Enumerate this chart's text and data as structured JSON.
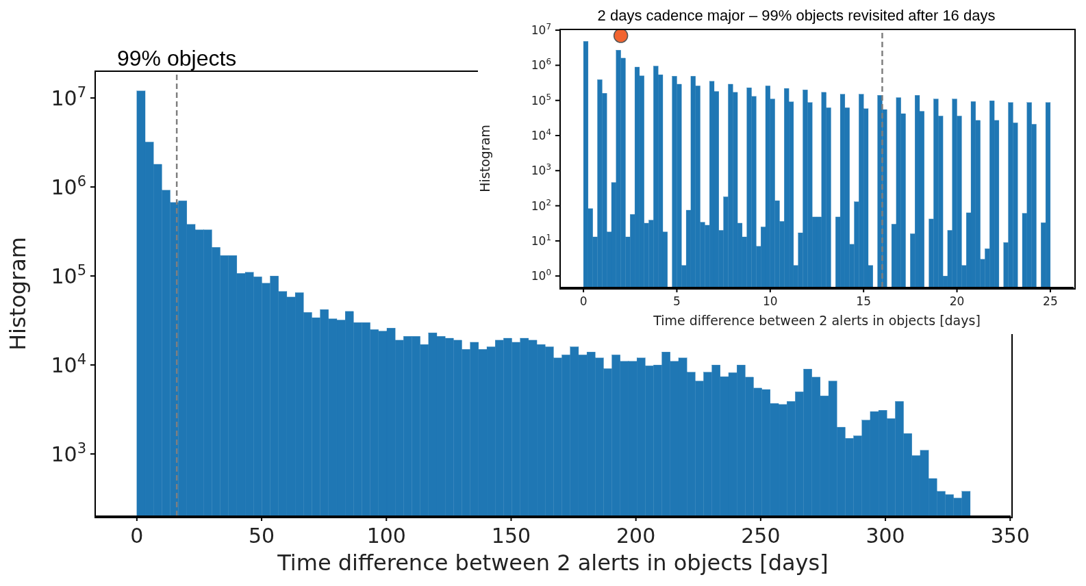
{
  "chart_data": [
    {
      "type": "histogram",
      "xlabel": "Time difference between 2 alerts in objects [days]",
      "ylabel": "Histogram",
      "log": true,
      "color": "#1f77b4",
      "bins": [
        0,
        3.34,
        6.68,
        10.02,
        13.36,
        16.7,
        20.04,
        23.38,
        26.72,
        30.06,
        33.4,
        36.74,
        40.08,
        43.42,
        46.76,
        50.1,
        53.44,
        56.78,
        60.12,
        63.46,
        66.8,
        70.14,
        73.48,
        76.82,
        80.16,
        83.5,
        86.84,
        90.18,
        93.52,
        96.86,
        100.2,
        103.54,
        106.88,
        110.22,
        113.56,
        116.9,
        120.24,
        123.58,
        126.92,
        130.26,
        133.6,
        136.94,
        140.28,
        143.62,
        146.96,
        150.3,
        153.64,
        156.98,
        160.32,
        163.66,
        167,
        170.34,
        173.68,
        177.02,
        180.36,
        183.7,
        187.04,
        190.38,
        193.72,
        197.06,
        200.4,
        203.74,
        207.08,
        210.42,
        213.76,
        217.1,
        220.44,
        223.78,
        227.12,
        230.46,
        233.8,
        237.14,
        240.48,
        243.82,
        247.16,
        250.5,
        253.84,
        257.18,
        260.52,
        263.86,
        267.2,
        270.54,
        273.88,
        277.22,
        280.56,
        283.9,
        287.24,
        290.58,
        293.92,
        297.26,
        300.6,
        303.94,
        307.28,
        310.62,
        313.96,
        317.3,
        320.64,
        323.98,
        327.32,
        330.66,
        334
      ],
      "values": [
        12000000,
        3200000,
        1800000,
        920000,
        670000,
        700000,
        380000,
        330000,
        330000,
        210000,
        170000,
        170000,
        107000,
        110000,
        98000,
        83000,
        100000,
        67000,
        58000,
        65000,
        39000,
        34000,
        42000,
        33000,
        32000,
        40000,
        30000,
        30000,
        25000,
        24000,
        26000,
        19000,
        21000,
        21000,
        17000,
        23000,
        21000,
        20000,
        19000,
        15000,
        18000,
        15000,
        16000,
        19000,
        20000,
        18000,
        20000,
        19000,
        17000,
        16000,
        12000,
        13000,
        16000,
        13000,
        14000,
        12000,
        9100,
        13000,
        11000,
        11000,
        12000,
        9800,
        10000,
        14000,
        11000,
        12000,
        8300,
        6600,
        8300,
        10000,
        7400,
        8200,
        10000,
        7300,
        5500,
        5300,
        3700,
        3600,
        3900,
        5000,
        9000,
        7300,
        4500,
        6600,
        2000,
        1500,
        1600,
        2400,
        3000,
        3100,
        2500,
        3900,
        1700,
        960,
        1100,
        530,
        380,
        350,
        320,
        380
      ],
      "xlim": [
        -16.7,
        350.2
      ],
      "xticks": [
        0,
        50,
        100,
        150,
        200,
        250,
        300,
        350
      ],
      "ylim": [
        200,
        20000000
      ],
      "yticks": [
        {
          "value": 1000,
          "label": "10$^{3}$"
        },
        {
          "value": 10000,
          "label": "10$^{4}$"
        },
        {
          "value": 100000,
          "label": "10$^{5}$"
        },
        {
          "value": 1000000,
          "label": "10$^{6}$"
        },
        {
          "value": 10000000,
          "label": "10$^{7}$"
        }
      ],
      "ref_lines": [
        {
          "axis": "x",
          "value": 16,
          "label": "99% objects",
          "color": "#7f7f7f",
          "line_style": "dashed"
        }
      ]
    },
    {
      "type": "histogram",
      "title": "2 days cadence major – 99% objects revisited after 16 days",
      "xlabel": "Time difference between 2 alerts in objects [days]",
      "ylabel": "Histogram",
      "log": true,
      "bins": [
        0,
        0.25,
        0.5,
        0.75,
        1,
        1.25,
        1.5,
        1.75,
        2,
        2.25,
        2.5,
        2.75,
        3,
        3.25,
        3.5,
        3.75,
        4,
        4.25,
        4.5,
        4.75,
        5,
        5.25,
        5.5,
        5.75,
        6,
        6.25,
        6.5,
        6.75,
        7,
        7.25,
        7.5,
        7.75,
        8,
        8.25,
        8.5,
        8.75,
        9,
        9.25,
        9.5,
        9.75,
        10,
        10.25,
        10.5,
        10.75,
        11,
        11.25,
        11.5,
        11.75,
        12,
        12.25,
        12.5,
        12.75,
        13,
        13.25,
        13.5,
        13.75,
        14,
        14.25,
        14.5,
        14.75,
        15,
        15.25,
        15.5,
        15.75,
        16,
        16.25,
        16.5,
        16.75,
        17,
        17.25,
        17.5,
        17.75,
        18,
        18.25,
        18.5,
        18.75,
        19,
        19.25,
        19.5,
        19.75,
        20,
        20.25,
        20.5,
        20.75,
        21,
        21.25,
        21.5,
        21.75,
        22,
        22.25,
        22.5,
        22.75,
        23,
        23.25,
        23.5,
        23.75,
        24,
        24.25,
        24.5,
        24.75,
        25
      ],
      "series": [
        {
          "type": "histogram",
          "color": "#1f77b4",
          "values": [
            4800000,
            83,
            13,
            390000,
            160000,
            18,
            460,
            2700000,
            1600000,
            13,
            57,
            890000,
            500000,
            32,
            39,
            950000,
            540000,
            18,
            null,
            490000,
            290000,
            2,
            75,
            490000,
            260000,
            34,
            28,
            350000,
            180000,
            20,
            180,
            290000,
            170000,
            32,
            13,
            230000,
            130000,
            7,
            25,
            260000,
            110000,
            140,
            36,
            220000,
            91000,
            2,
            17,
            200000,
            87000,
            48,
            48,
            170000,
            62000,
            null,
            48,
            150000,
            62000,
            8,
            130,
            150000,
            58000,
            2,
            null,
            140000,
            55000,
            null,
            30,
            120000,
            42000,
            null,
            16,
            140000,
            49000,
            null,
            42,
            110000,
            36000,
            1,
            20,
            110000,
            36000,
            2,
            63,
            93000,
            27000,
            3,
            6,
            98000,
            27000,
            null,
            9,
            87000,
            23000,
            null,
            61,
            87000,
            21000,
            null,
            33,
            87000
          ]
        },
        {
          "type": "scatter",
          "marker": "circle",
          "color": "#f26430",
          "x": [
            2
          ],
          "values": [
            7000000
          ]
        }
      ],
      "xlim": [
        -1.25,
        26.25
      ],
      "xticks": [
        0,
        5,
        10,
        15,
        20,
        25
      ],
      "ylim": [
        0.47,
        10500000
      ],
      "yticks": [
        {
          "value": 1,
          "label": "10$^{0}$"
        },
        {
          "value": 10,
          "label": "10$^{1}$"
        },
        {
          "value": 100,
          "label": "10$^{2}$"
        },
        {
          "value": 1000,
          "label": "10$^{3}$"
        },
        {
          "value": 10000,
          "label": "10$^{4}$"
        },
        {
          "value": 100000,
          "label": "10$^{5}$"
        },
        {
          "value": 1000000,
          "label": "10$^{6}$"
        },
        {
          "value": 10000000,
          "label": "10$^{7}$"
        }
      ],
      "ref_lines": [
        {
          "axis": "x",
          "value": 16,
          "color": "#7f7f7f",
          "line_style": "dashed"
        }
      ]
    }
  ]
}
